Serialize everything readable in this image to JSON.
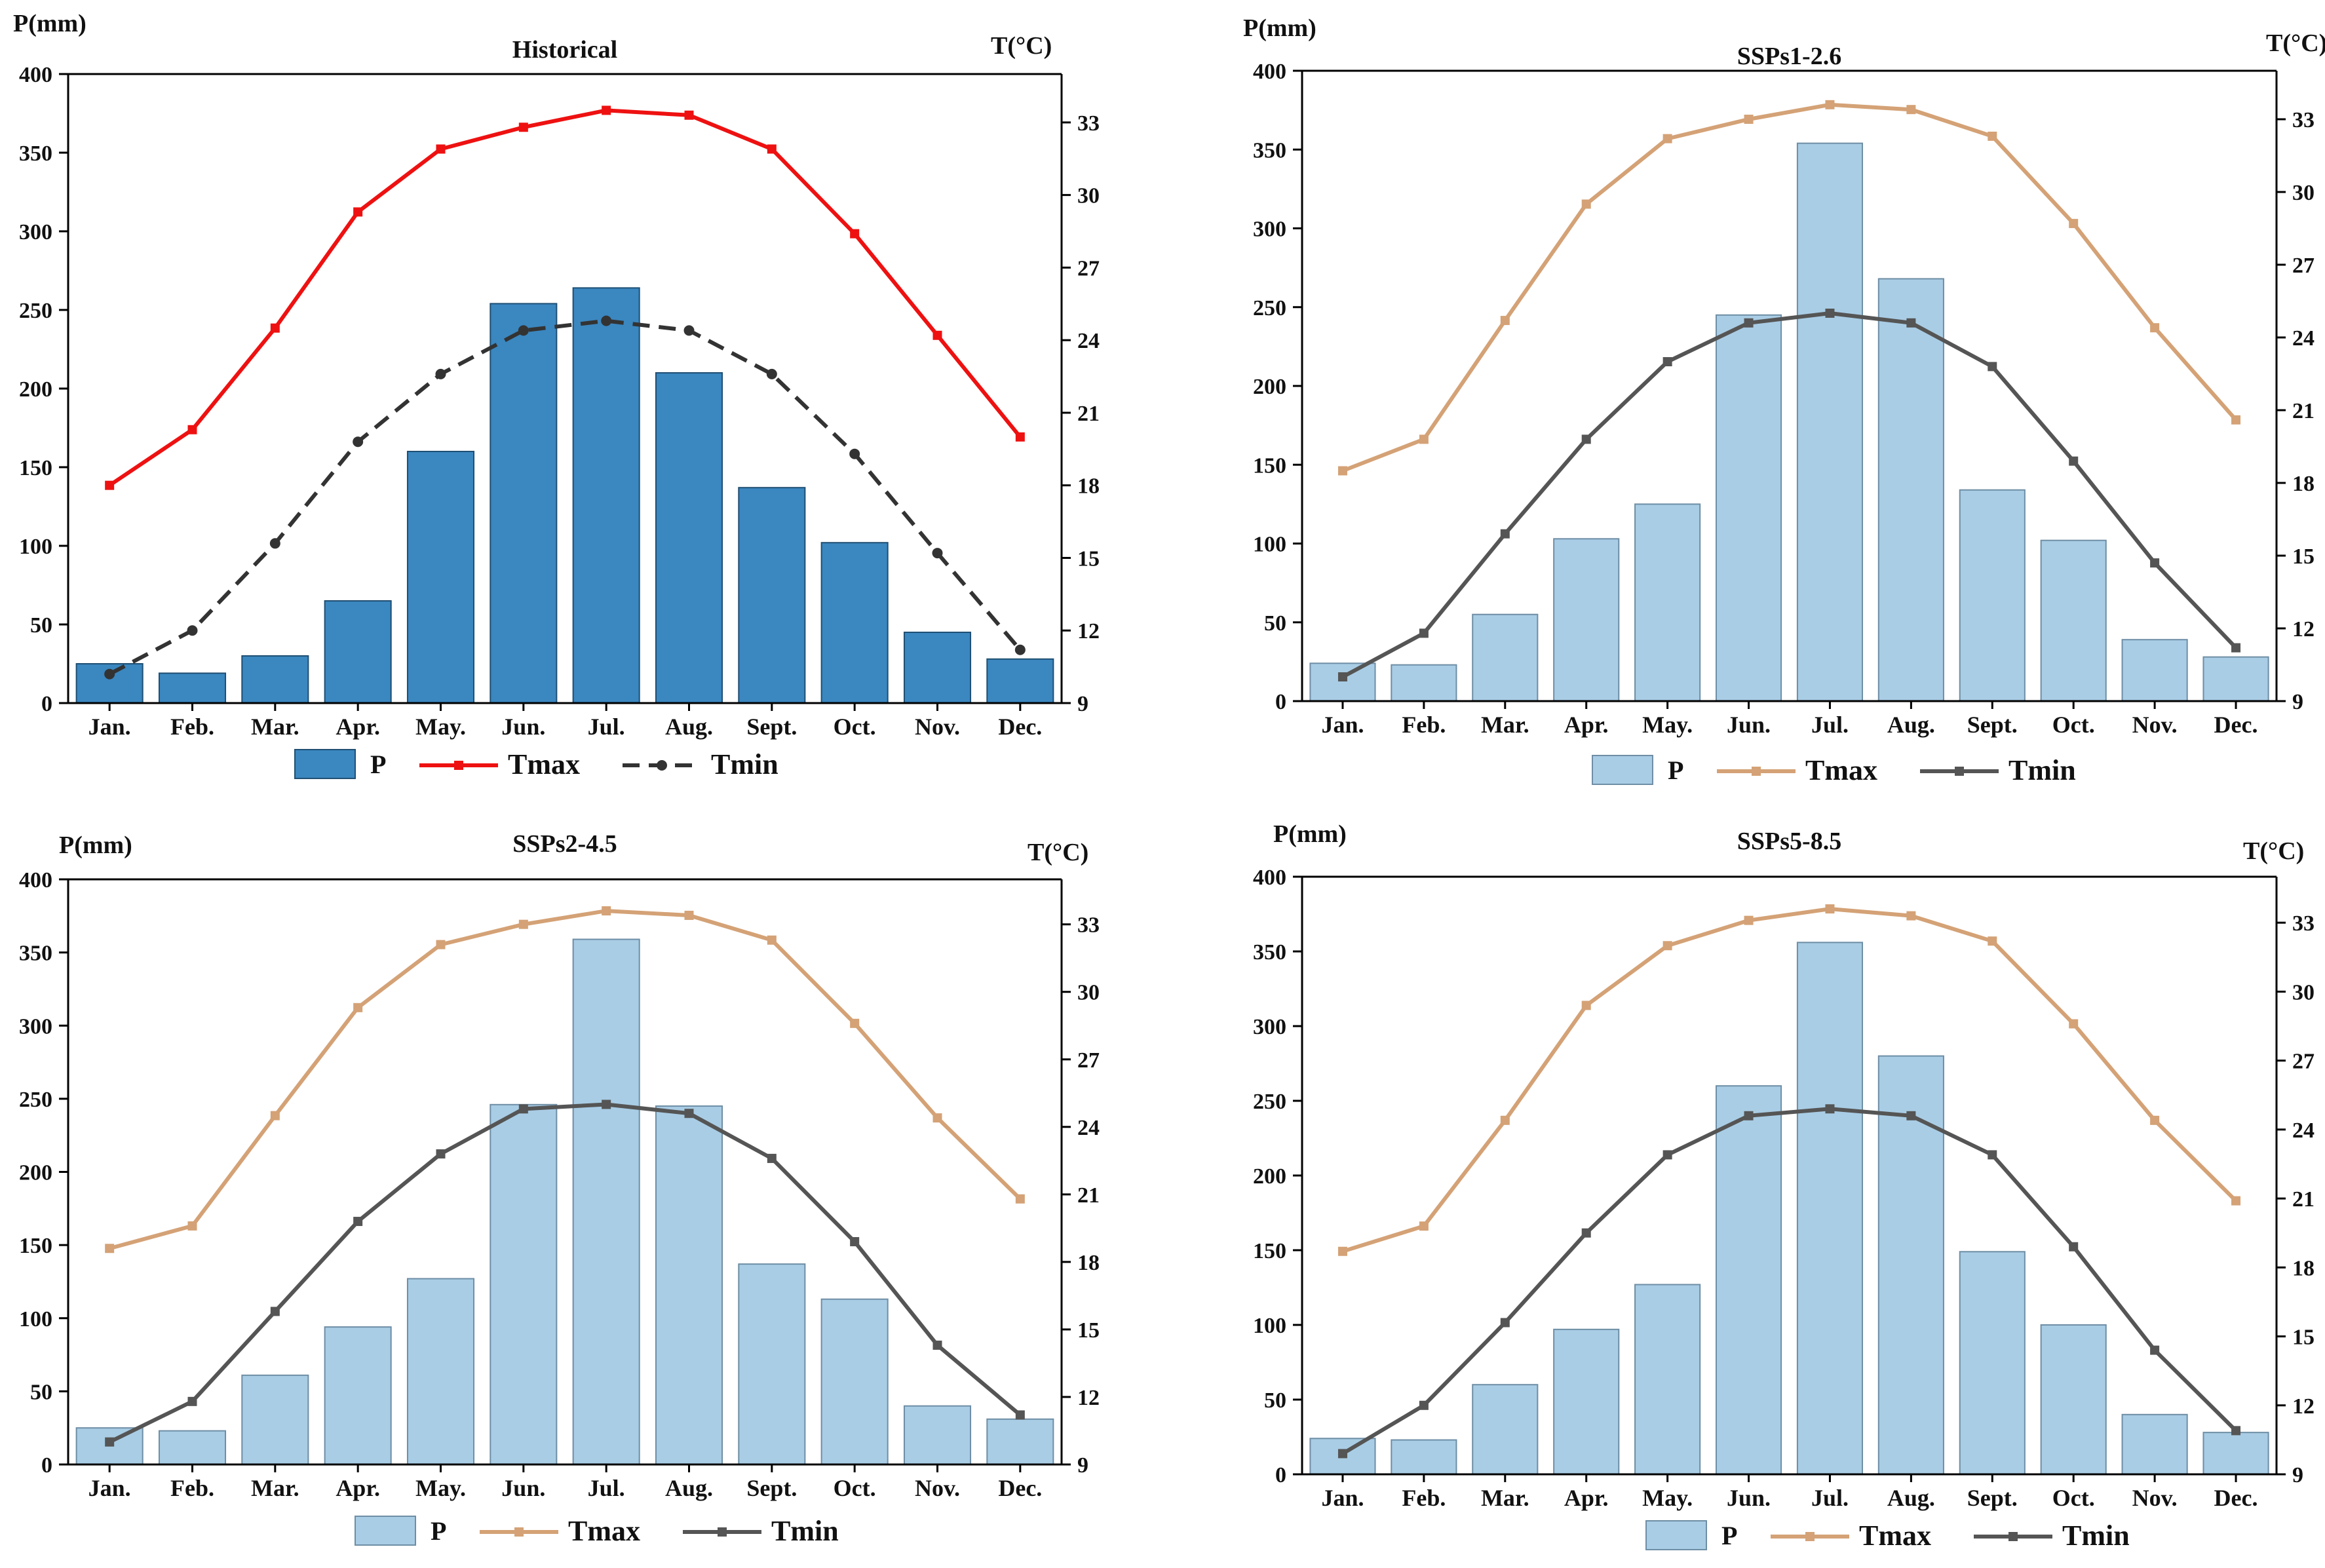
{
  "chart_data": [
    {
      "type": "bar",
      "title": "Historical",
      "ylabel_left": "P(mm)",
      "ylabel_right": "T(°C)",
      "categories": [
        "Jan.",
        "Feb.",
        "Mar.",
        "Apr.",
        "May.",
        "Jun.",
        "Jul.",
        "Aug.",
        "Sept.",
        "Oct.",
        "Nov.",
        "Dec."
      ],
      "ylim_left": [
        0,
        400
      ],
      "yticks_left": [
        0,
        50,
        100,
        150,
        200,
        250,
        300,
        350,
        400
      ],
      "ylim_right": [
        9,
        35
      ],
      "yticks_right": [
        9,
        12,
        15,
        18,
        21,
        24,
        27,
        30,
        33
      ],
      "series": [
        {
          "name": "P",
          "kind": "bar",
          "axis": "left",
          "color": "#3b87c0",
          "values": [
            25,
            19,
            30,
            65,
            160,
            254,
            264,
            210,
            137,
            102,
            45,
            28
          ]
        },
        {
          "name": "Tmax",
          "kind": "line",
          "axis": "right",
          "color": "#ee1111",
          "dash": "solid",
          "marker": "square",
          "values": [
            18.0,
            20.3,
            24.5,
            29.3,
            31.9,
            32.8,
            33.5,
            33.3,
            31.9,
            28.4,
            24.2,
            20.0
          ]
        },
        {
          "name": "Tmin",
          "kind": "line",
          "axis": "right",
          "color": "#333333",
          "dash": "dashed",
          "marker": "circle",
          "values": [
            10.2,
            12.0,
            15.6,
            19.8,
            22.6,
            24.4,
            24.8,
            24.4,
            22.6,
            19.3,
            15.2,
            11.2
          ]
        }
      ],
      "legend": [
        "P",
        "Tmax",
        "Tmin"
      ],
      "legend_position": "bottom"
    },
    {
      "type": "bar",
      "title": "SSPs1-2.6",
      "ylabel_left": "P(mm)",
      "ylabel_right": "T(°C)",
      "categories": [
        "Jan.",
        "Feb.",
        "Mar.",
        "Apr.",
        "May.",
        "Jun.",
        "Jul.",
        "Aug.",
        "Sept.",
        "Oct.",
        "Nov.",
        "Dec."
      ],
      "ylim_left": [
        0,
        400
      ],
      "yticks_left": [
        0,
        50,
        100,
        150,
        200,
        250,
        300,
        350,
        400
      ],
      "ylim_right": [
        9,
        35
      ],
      "yticks_right": [
        9,
        12,
        15,
        18,
        21,
        24,
        27,
        30,
        33
      ],
      "series": [
        {
          "name": "P",
          "kind": "bar",
          "axis": "left",
          "color": "#a9cde5",
          "values": [
            24,
            23,
            55,
            103,
            125,
            245,
            354,
            268,
            134,
            102,
            39,
            28
          ]
        },
        {
          "name": "Tmax",
          "kind": "line",
          "axis": "right",
          "color": "#d4a276",
          "dash": "solid",
          "marker": "square",
          "values": [
            18.5,
            19.8,
            24.7,
            29.5,
            32.2,
            33.0,
            33.6,
            33.4,
            32.3,
            28.7,
            24.4,
            20.6
          ]
        },
        {
          "name": "Tmin",
          "kind": "line",
          "axis": "right",
          "color": "#555555",
          "dash": "solid",
          "marker": "square",
          "values": [
            10.0,
            11.8,
            15.9,
            19.8,
            23.0,
            24.6,
            25.0,
            24.6,
            22.8,
            18.9,
            14.7,
            11.2
          ]
        }
      ],
      "legend": [
        "P",
        "Tmax",
        "Tmin"
      ],
      "legend_position": "bottom"
    },
    {
      "type": "bar",
      "title": "SSPs2-4.5",
      "ylabel_left": "P(mm)",
      "ylabel_right": "T(°C)",
      "categories": [
        "Jan.",
        "Feb.",
        "Mar.",
        "Apr.",
        "May.",
        "Jun.",
        "Jul.",
        "Aug.",
        "Sept.",
        "Oct.",
        "Nov.",
        "Dec."
      ],
      "ylim_left": [
        0,
        400
      ],
      "yticks_left": [
        0,
        50,
        100,
        150,
        200,
        250,
        300,
        350,
        400
      ],
      "ylim_right": [
        9,
        35
      ],
      "yticks_right": [
        9,
        12,
        15,
        18,
        21,
        24,
        27,
        30,
        33
      ],
      "series": [
        {
          "name": "P",
          "kind": "bar",
          "axis": "left",
          "color": "#a9cde5",
          "values": [
            25,
            23,
            61,
            94,
            127,
            246,
            359,
            245,
            137,
            113,
            40,
            31
          ]
        },
        {
          "name": "Tmax",
          "kind": "line",
          "axis": "right",
          "color": "#d4a276",
          "dash": "solid",
          "marker": "square",
          "values": [
            18.6,
            19.6,
            24.5,
            29.3,
            32.1,
            33.0,
            33.6,
            33.4,
            32.3,
            28.6,
            24.4,
            20.8
          ]
        },
        {
          "name": "Tmin",
          "kind": "line",
          "axis": "right",
          "color": "#555555",
          "dash": "solid",
          "marker": "square",
          "values": [
            10.0,
            11.8,
            15.8,
            19.8,
            22.8,
            24.8,
            25.0,
            24.6,
            22.6,
            18.9,
            14.3,
            11.2
          ]
        }
      ],
      "legend": [
        "P",
        "Tmax",
        "Tmin"
      ],
      "legend_position": "bottom"
    },
    {
      "type": "bar",
      "title": "SSPs5-8.5",
      "ylabel_left": "P(mm)",
      "ylabel_right": "T(°C)",
      "categories": [
        "Jan.",
        "Feb.",
        "Mar.",
        "Apr.",
        "May.",
        "Jun.",
        "Jul.",
        "Aug.",
        "Sept.",
        "Oct.",
        "Nov.",
        "Dec."
      ],
      "ylim_left": [
        0,
        400
      ],
      "yticks_left": [
        0,
        50,
        100,
        150,
        200,
        250,
        300,
        350,
        400
      ],
      "ylim_right": [
        9,
        35
      ],
      "yticks_right": [
        9,
        12,
        15,
        18,
        21,
        24,
        27,
        30,
        33
      ],
      "series": [
        {
          "name": "P",
          "kind": "bar",
          "axis": "left",
          "color": "#a9cde5",
          "values": [
            24,
            23,
            60,
            97,
            127,
            260,
            356,
            280,
            149,
            100,
            40,
            28
          ]
        },
        {
          "name": "Tmax",
          "kind": "line",
          "axis": "right",
          "color": "#d4a276",
          "dash": "solid",
          "marker": "square",
          "values": [
            18.7,
            19.8,
            24.4,
            29.4,
            32.0,
            33.1,
            33.6,
            33.3,
            32.2,
            28.6,
            24.4,
            20.9
          ]
        },
        {
          "name": "Tmin",
          "kind": "line",
          "axis": "right",
          "color": "#555555",
          "dash": "solid",
          "marker": "square",
          "values": [
            9.9,
            12.0,
            15.6,
            19.5,
            22.9,
            24.6,
            24.9,
            24.6,
            22.9,
            18.9,
            14.4,
            10.9
          ]
        }
      ],
      "legend": [
        "P",
        "Tmax",
        "Tmin"
      ],
      "legend_position": "bottom"
    }
  ]
}
